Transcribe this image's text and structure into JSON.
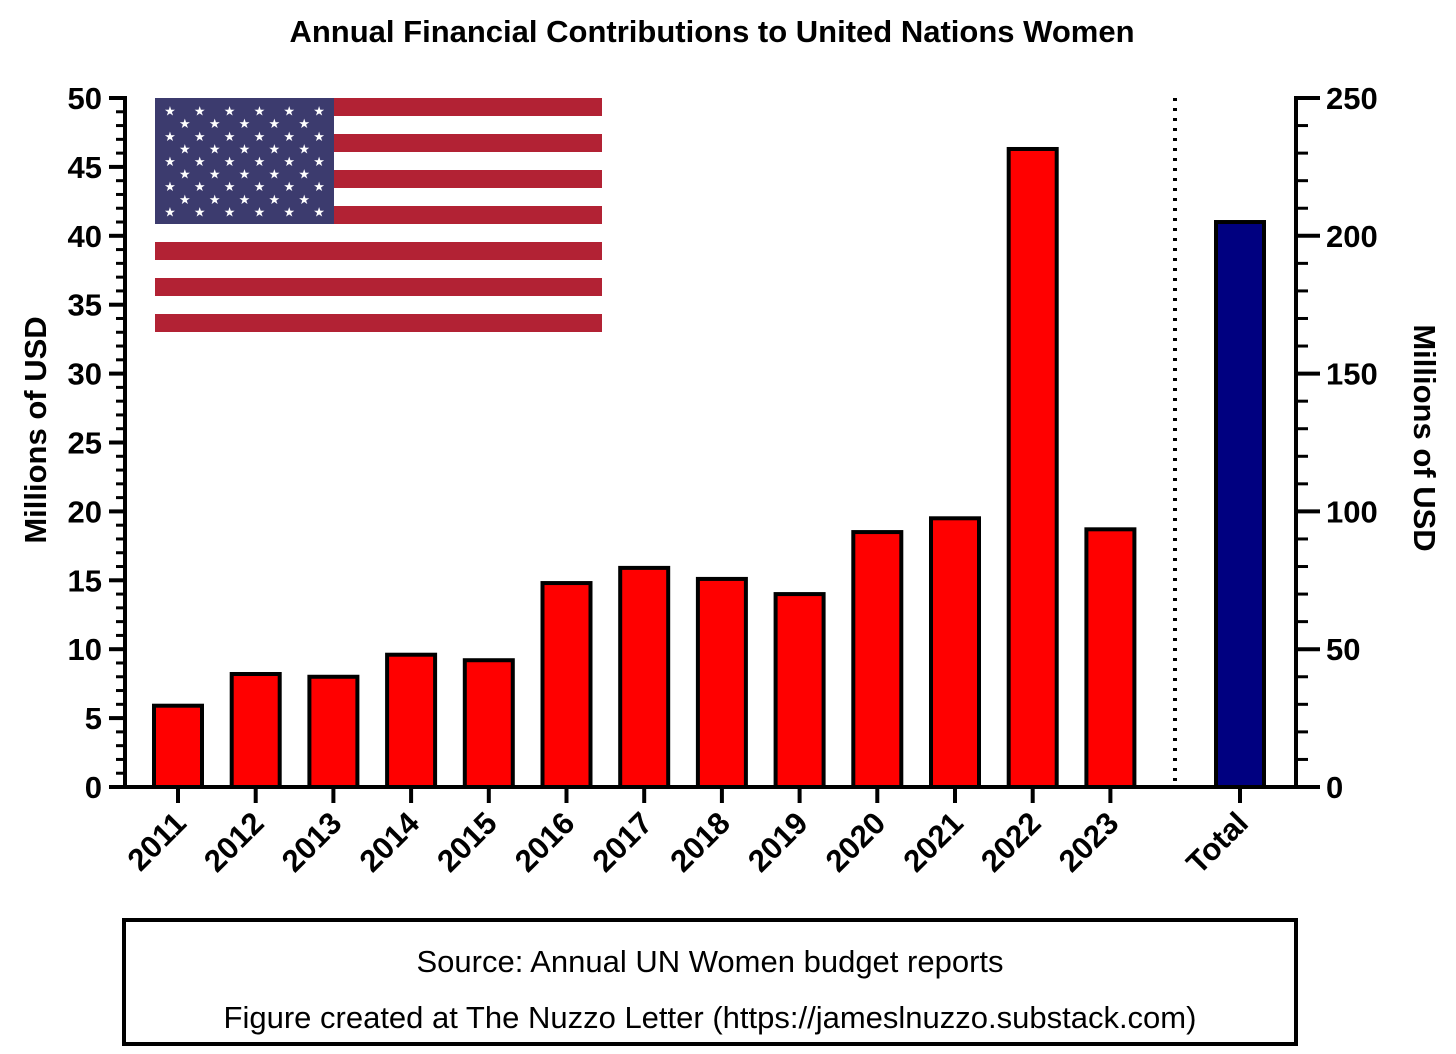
{
  "chart_data": {
    "type": "bar",
    "title": "Annual Financial Contributions to United Nations Women",
    "categories": [
      "2011",
      "2012",
      "2013",
      "2014",
      "2015",
      "2016",
      "2017",
      "2018",
      "2019",
      "2020",
      "2021",
      "2022",
      "2023"
    ],
    "values": [
      5.9,
      8.2,
      8.0,
      9.6,
      9.2,
      14.8,
      15.9,
      15.1,
      14.0,
      18.5,
      19.5,
      46.3,
      18.7
    ],
    "left_axis": {
      "label": "Millions of USD",
      "ylim": [
        0,
        50
      ],
      "ticks": [
        0,
        5,
        10,
        15,
        20,
        25,
        30,
        35,
        40,
        45,
        50
      ]
    },
    "right_axis": {
      "label": "Millions of USD",
      "ylim": [
        0,
        250
      ],
      "ticks": [
        0,
        50,
        100,
        150,
        200,
        250
      ]
    },
    "total": {
      "label": "Total",
      "value": 205,
      "axis": "right"
    },
    "colors": {
      "annual_bar": "#ff0000",
      "total_bar": "#000080",
      "outline": "#000000",
      "flag_red": "#b22234",
      "flag_blue": "#3c3b6e",
      "flag_white": "#ffffff"
    }
  },
  "source": {
    "line1": "Source: Annual UN Women budget reports",
    "line2": "Figure created at The Nuzzo Letter (https://jameslnuzzo.substack.com)"
  }
}
